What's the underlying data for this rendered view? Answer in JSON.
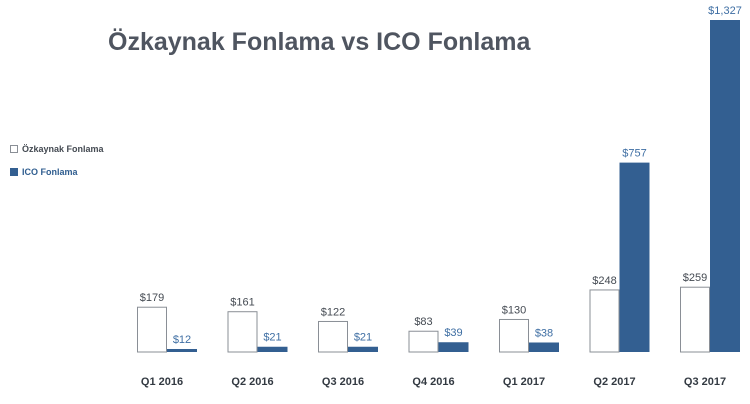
{
  "colors": {
    "equity_fill": "#ffffff",
    "equity_stroke": "#8a8f96",
    "ico_fill": "#335f91",
    "equity_label": "#444a52",
    "ico_label": "#3e6ea3",
    "title": "#4f5560"
  },
  "chart_data": {
    "type": "bar",
    "title": "Özkaynak Fonlama vs ICO Fonlama",
    "xlabel": "",
    "ylabel": "",
    "ylim": [
      0,
      1327
    ],
    "grid": false,
    "legend_position": "left",
    "categories": [
      "Q1 2016",
      "Q2 2016",
      "Q3 2016",
      "Q4 2016",
      "Q1 2017",
      "Q2 2017",
      "Q3 2017"
    ],
    "series": [
      {
        "name": "Özkaynak Fonlama",
        "values": [
          179,
          161,
          122,
          83,
          130,
          248,
          259
        ],
        "labels": [
          "$179",
          "$161",
          "$122",
          "$83",
          "$130",
          "$248",
          "$259"
        ]
      },
      {
        "name": "ICO Fonlama",
        "values": [
          12,
          21,
          21,
          39,
          38,
          757,
          1327
        ],
        "labels": [
          "$12",
          "$21",
          "$21",
          "$39",
          "$38",
          "$757",
          "$1,327"
        ]
      }
    ]
  }
}
